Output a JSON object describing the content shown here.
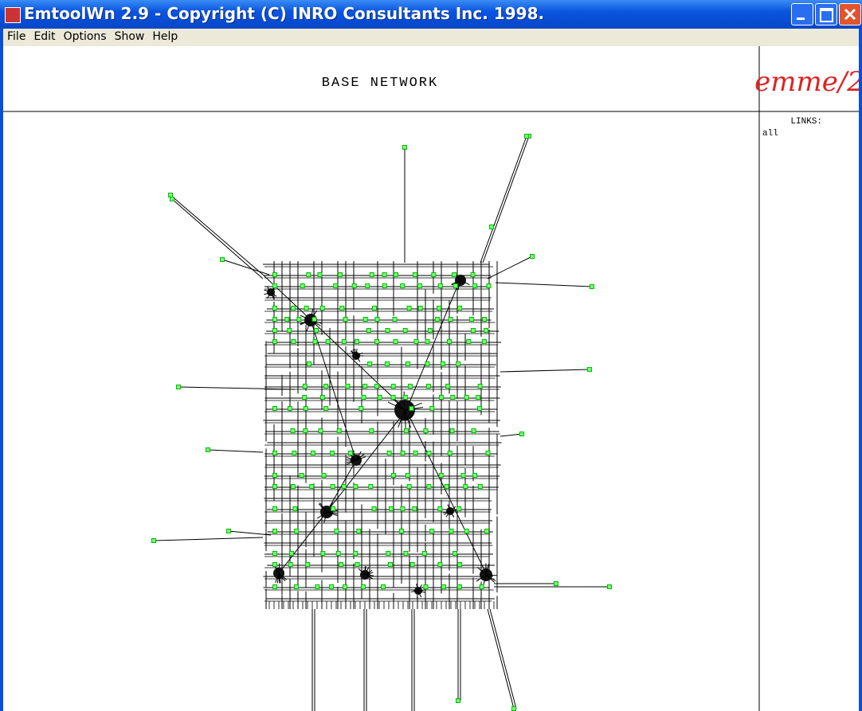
{
  "window": {
    "title": "EmtoolWn 2.9 - Copyright (C) INRO Consultants Inc. 1998."
  },
  "menu": [
    "File",
    "Edit",
    "Options",
    "Show",
    "Help"
  ],
  "header": {
    "title": "BASE NETWORK",
    "logo": "emme/2"
  },
  "panel": {
    "label": "LINKS:",
    "value": "all"
  }
}
